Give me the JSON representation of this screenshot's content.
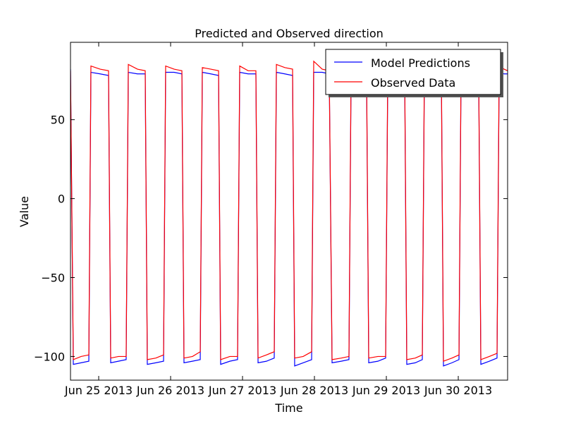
{
  "chart_data": {
    "type": "line",
    "title": "Predicted and Observed direction",
    "xlabel": "Time",
    "ylabel": "Value",
    "x": [
      -0.392,
      -0.353,
      -0.245,
      -0.137,
      -0.108,
      0.02,
      0.137,
      0.167,
      0.275,
      0.382,
      0.412,
      0.539,
      0.647,
      0.676,
      0.794,
      0.902,
      0.931,
      1.049,
      1.157,
      1.186,
      1.304,
      1.412,
      1.441,
      1.559,
      1.667,
      1.696,
      1.824,
      1.931,
      1.961,
      2.078,
      2.186,
      2.216,
      2.333,
      2.441,
      2.471,
      2.588,
      2.696,
      2.725,
      2.843,
      2.961,
      2.99,
      3.108,
      3.206,
      3.245,
      3.373,
      3.48,
      3.51,
      3.627,
      3.725,
      3.755,
      3.882,
      3.99,
      4.02,
      4.137,
      4.255,
      4.284,
      4.402,
      4.5,
      4.529,
      4.657,
      4.765,
      4.794,
      4.912,
      5.01,
      5.039,
      5.167,
      5.284,
      5.314,
      5.431,
      5.539,
      5.569,
      5.637,
      5.686
    ],
    "series": [
      {
        "name": "Model Predictions",
        "color": "#0000ff",
        "values": [
          82,
          -105,
          -104,
          -103,
          80,
          79,
          78,
          -104,
          -103,
          -102,
          80,
          79,
          79,
          -105,
          -104,
          -103,
          80,
          80,
          79,
          -104,
          -103,
          -102,
          80,
          79,
          78,
          -105,
          -103,
          -102,
          80,
          79,
          79,
          -104,
          -103,
          -101,
          80,
          79,
          78,
          -106,
          -104,
          -102,
          80,
          80,
          79,
          -104,
          -103,
          -102,
          80,
          79,
          78,
          -104,
          -103,
          -101,
          80,
          79,
          78,
          -105,
          -104,
          -102,
          80,
          79,
          79,
          -106,
          -104,
          -102,
          80,
          80,
          79,
          -105,
          -103,
          -101,
          80,
          79,
          79
        ]
      },
      {
        "name": "Observed Data",
        "color": "#ff0000",
        "values": [
          81,
          -102,
          -100,
          -99,
          84,
          82,
          81,
          -101,
          -100,
          -100,
          85,
          82,
          81,
          -102,
          -101,
          -99,
          84,
          82,
          81,
          -101,
          -100,
          -97,
          83,
          82,
          81,
          -102,
          -100,
          -100,
          84,
          81,
          81,
          -101,
          -99,
          -97,
          85,
          83,
          82,
          -101,
          -100,
          -97,
          87,
          82,
          81,
          -102,
          -101,
          -100,
          83,
          82,
          81,
          -101,
          -100,
          -100,
          84,
          81,
          81,
          -102,
          -101,
          -99,
          83,
          82,
          81,
          -103,
          -101,
          -99,
          83,
          82,
          81,
          -102,
          -100,
          -98,
          84,
          82,
          81
        ]
      }
    ],
    "xlim": [
      -0.392,
      5.686
    ],
    "xticks": [
      {
        "value": 0,
        "label": "Jun 25 2013"
      },
      {
        "value": 1,
        "label": "Jun 26 2013"
      },
      {
        "value": 2,
        "label": "Jun 27 2013"
      },
      {
        "value": 3,
        "label": "Jun 28 2013"
      },
      {
        "value": 4,
        "label": "Jun 29 2013"
      },
      {
        "value": 5,
        "label": "Jun 30 2013"
      }
    ],
    "ylim": [
      -115,
      99
    ],
    "yticks": [
      {
        "value": -100,
        "label": "−100"
      },
      {
        "value": -50,
        "label": "−50"
      },
      0,
      50
    ],
    "legend": "upper right"
  }
}
